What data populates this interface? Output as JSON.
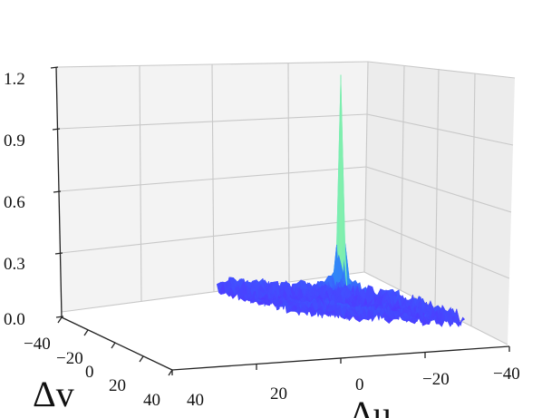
{
  "chart_data": {
    "type": "surface3d",
    "title": "",
    "xlabel": "Δu",
    "ylabel": "Δv",
    "zlabel": "",
    "x_ticks": [
      "40",
      "20",
      "0",
      "−20",
      "−40"
    ],
    "y_ticks": [
      "−40",
      "−20",
      "0",
      "20",
      "40"
    ],
    "z_ticks": [
      "0.0",
      "0.3",
      "0.6",
      "0.9",
      "1.2"
    ],
    "xlim": [
      -40,
      40
    ],
    "ylim": [
      -40,
      40
    ],
    "zlim": [
      0,
      1.2
    ],
    "grid": true,
    "colormap": "rainbow",
    "colorbar": false,
    "description": "",
    "peak": {
      "du": 0,
      "dv": 0,
      "value": 1.12
    },
    "background_level": 0.05,
    "noise_amplitude": 0.05
  }
}
